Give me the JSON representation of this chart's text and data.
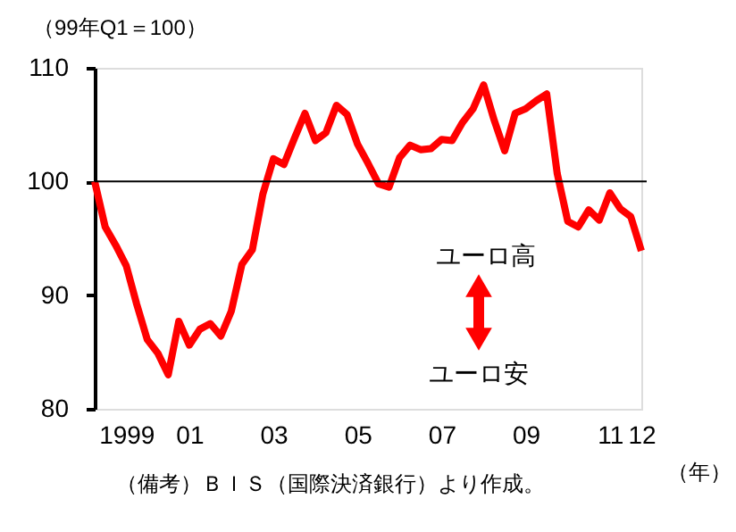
{
  "chart_data": {
    "type": "line",
    "ylabel": "（99年Q1＝100）",
    "xlabel": "（年）",
    "categories": [
      null,
      null,
      null,
      "1999",
      null,
      null,
      null,
      null,
      null,
      "01",
      null,
      null,
      null,
      null,
      null,
      null,
      null,
      "03",
      null,
      null,
      null,
      null,
      null,
      null,
      null,
      "05",
      null,
      null,
      null,
      null,
      null,
      null,
      null,
      "07",
      null,
      null,
      null,
      null,
      null,
      null,
      null,
      "09",
      null,
      null,
      null,
      null,
      null,
      null,
      null,
      "11",
      null,
      null,
      "12"
    ],
    "series": [
      {
        "color": "#ff0000",
        "values": [
          100,
          96.0,
          94.4,
          92.6,
          89.2,
          86.1,
          84.9,
          83.0,
          87.7,
          85.6,
          87.0,
          87.5,
          86.4,
          88.6,
          92.7,
          94.0,
          98.9,
          102.0,
          101.5,
          103.8,
          106.0,
          103.6,
          104.3,
          106.7,
          105.9,
          103.3,
          101.6,
          99.8,
          99.5,
          102.1,
          103.2,
          102.8,
          102.9,
          103.7,
          103.6,
          105.2,
          106.4,
          108.5,
          105.4,
          102.7,
          106.0,
          106.4,
          107.1,
          107.7,
          100.7,
          96.5,
          96.0,
          97.5,
          96.6,
          99.0,
          97.6,
          96.9,
          93.9
        ]
      }
    ],
    "ylim": [
      80,
      110
    ],
    "yticks": [
      80,
      90,
      100,
      110
    ],
    "ref_lines": [
      {
        "axis": "y",
        "value": 100,
        "color": "#000000"
      }
    ],
    "annotations": [
      "ユーロ高",
      "ユーロ安",
      "（備考）ＢＩＳ（国際決済銀行）より作成。"
    ],
    "grid": false,
    "marker": "none",
    "line_style": "solid"
  }
}
